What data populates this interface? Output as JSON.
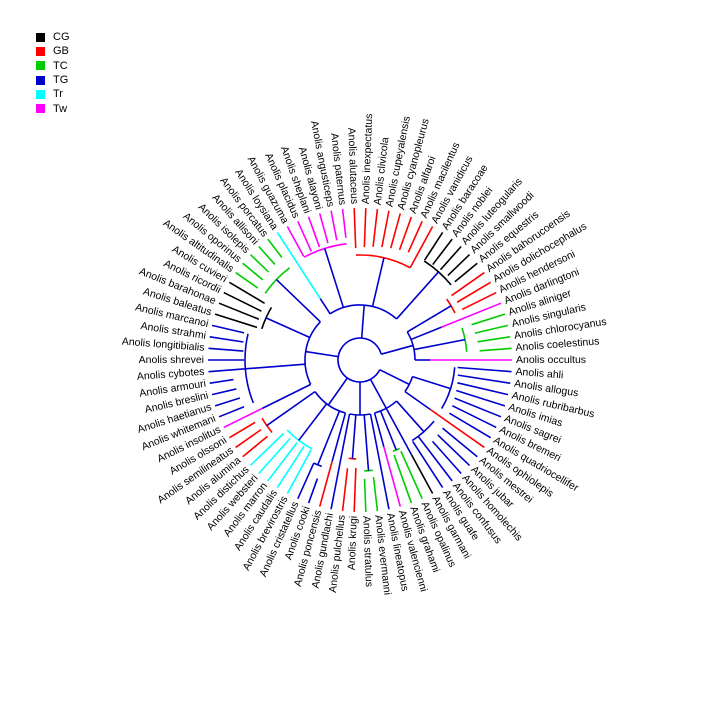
{
  "colors": {
    "CG": "#000000",
    "GB": "#ff0000",
    "TC": "#00cd00",
    "TG": "#0000cd",
    "Tr": "#00ffff",
    "Tw": "#ff00ff"
  },
  "legend": [
    {
      "label": "CG",
      "color": "#000000"
    },
    {
      "label": "GB",
      "color": "#ff0000"
    },
    {
      "label": "TC",
      "color": "#00cd00"
    },
    {
      "label": "TG",
      "color": "#0000cd"
    },
    {
      "label": "Tr",
      "color": "#00ffff"
    },
    {
      "label": "Tw",
      "color": "#ff00ff"
    }
  ],
  "tips": [
    {
      "name": "Anolis occultus",
      "ecomorph": "Tw"
    },
    {
      "name": "Anolis coelestinus",
      "ecomorph": "TC"
    },
    {
      "name": "Anolis chlorocyanus",
      "ecomorph": "TC"
    },
    {
      "name": "Anolis singularis",
      "ecomorph": "TC"
    },
    {
      "name": "Anolis aliniger",
      "ecomorph": "TC"
    },
    {
      "name": "Anolis darlingtoni",
      "ecomorph": "Tw"
    },
    {
      "name": "Anolis hendersoni",
      "ecomorph": "GB"
    },
    {
      "name": "Anolis dolichocephalus",
      "ecomorph": "GB"
    },
    {
      "name": "Anolis bahorucoensis",
      "ecomorph": "GB"
    },
    {
      "name": "Anolis equestris",
      "ecomorph": "CG"
    },
    {
      "name": "Anolis smallwoodi",
      "ecomorph": "CG"
    },
    {
      "name": "Anolis luteogularis",
      "ecomorph": "CG"
    },
    {
      "name": "Anolis noblei",
      "ecomorph": "CG"
    },
    {
      "name": "Anolis baracoae",
      "ecomorph": "CG"
    },
    {
      "name": "Anolis vanidicus",
      "ecomorph": "GB"
    },
    {
      "name": "Anolis macilentus",
      "ecomorph": "GB"
    },
    {
      "name": "Anolis alfaroi",
      "ecomorph": "GB"
    },
    {
      "name": "Anolis cyanopleurus",
      "ecomorph": "GB"
    },
    {
      "name": "Anolis cupeyalensis",
      "ecomorph": "GB"
    },
    {
      "name": "Anolis clivicola",
      "ecomorph": "GB"
    },
    {
      "name": "Anolis inexpectatus",
      "ecomorph": "GB"
    },
    {
      "name": "Anolis alutaceus",
      "ecomorph": "GB"
    },
    {
      "name": "Anolis paternus",
      "ecomorph": "Tw"
    },
    {
      "name": "Anolis angusticeps",
      "ecomorph": "Tw"
    },
    {
      "name": "Anolis alayoni",
      "ecomorph": "Tw"
    },
    {
      "name": "Anolis sheplani",
      "ecomorph": "Tw"
    },
    {
      "name": "Anolis placidus",
      "ecomorph": "Tw"
    },
    {
      "name": "Anolis guazuma",
      "ecomorph": "Tw"
    },
    {
      "name": "Anolis loysiana",
      "ecomorph": "Tr"
    },
    {
      "name": "Anolis porcatus",
      "ecomorph": "TC"
    },
    {
      "name": "Anolis allisoni",
      "ecomorph": "TC"
    },
    {
      "name": "Anolis isolepis",
      "ecomorph": "TC"
    },
    {
      "name": "Anolis oporinus",
      "ecomorph": "TC"
    },
    {
      "name": "Anolis altitudinalis",
      "ecomorph": "TC"
    },
    {
      "name": "Anolis cuvieri",
      "ecomorph": "CG"
    },
    {
      "name": "Anolis ricordii",
      "ecomorph": "CG"
    },
    {
      "name": "Anolis barahonae",
      "ecomorph": "CG"
    },
    {
      "name": "Anolis baleatus",
      "ecomorph": "CG"
    },
    {
      "name": "Anolis marcanoi",
      "ecomorph": "TG"
    },
    {
      "name": "Anolis strahmi",
      "ecomorph": "TG"
    },
    {
      "name": "Anolis longitibialis",
      "ecomorph": "TG"
    },
    {
      "name": "Anolis shrevei",
      "ecomorph": "TG"
    },
    {
      "name": "Anolis cybotes",
      "ecomorph": "TG"
    },
    {
      "name": "Anolis armouri",
      "ecomorph": "TG"
    },
    {
      "name": "Anolis breslini",
      "ecomorph": "TG"
    },
    {
      "name": "Anolis haetianus",
      "ecomorph": "TG"
    },
    {
      "name": "Anolis whitemani",
      "ecomorph": "TG"
    },
    {
      "name": "Anolis insolitus",
      "ecomorph": "Tw"
    },
    {
      "name": "Anolis olssoni",
      "ecomorph": "GB"
    },
    {
      "name": "Anolis semilineatus",
      "ecomorph": "GB"
    },
    {
      "name": "Anolis alumina",
      "ecomorph": "GB"
    },
    {
      "name": "Anolis distichus",
      "ecomorph": "Tr"
    },
    {
      "name": "Anolis websteri",
      "ecomorph": "Tr"
    },
    {
      "name": "Anolis marron",
      "ecomorph": "Tr"
    },
    {
      "name": "Anolis caudalis",
      "ecomorph": "Tr"
    },
    {
      "name": "Anolis brevirostris",
      "ecomorph": "Tr"
    },
    {
      "name": "Anolis cristatellus",
      "ecomorph": "TG"
    },
    {
      "name": "Anolis cooki",
      "ecomorph": "TG"
    },
    {
      "name": "Anolis poncensis",
      "ecomorph": "GB"
    },
    {
      "name": "Anolis gundlachi",
      "ecomorph": "TG"
    },
    {
      "name": "Anolis pulchellus",
      "ecomorph": "GB"
    },
    {
      "name": "Anolis krugi",
      "ecomorph": "GB"
    },
    {
      "name": "Anolis stratulus",
      "ecomorph": "TC"
    },
    {
      "name": "Anolis evermanni",
      "ecomorph": "TC"
    },
    {
      "name": "Anolis lineatopus",
      "ecomorph": "TG"
    },
    {
      "name": "Anolis valencienni",
      "ecomorph": "Tw"
    },
    {
      "name": "Anolis grahami",
      "ecomorph": "TC"
    },
    {
      "name": "Anolis opalinus",
      "ecomorph": "TC"
    },
    {
      "name": "Anolis garmani",
      "ecomorph": "CG"
    },
    {
      "name": "Anolis guafe",
      "ecomorph": "TG"
    },
    {
      "name": "Anolis confusus",
      "ecomorph": "TG"
    },
    {
      "name": "Anolis homolechis",
      "ecomorph": "TG"
    },
    {
      "name": "Anolis jubar",
      "ecomorph": "TG"
    },
    {
      "name": "Anolis mestrei",
      "ecomorph": "TG"
    },
    {
      "name": "Anolis ophiolepis",
      "ecomorph": "GB"
    },
    {
      "name": "Anolis quadriocellifer",
      "ecomorph": "TG"
    },
    {
      "name": "Anolis bremeri",
      "ecomorph": "TG"
    },
    {
      "name": "Anolis sagrei",
      "ecomorph": "TG"
    },
    {
      "name": "Anolis imias",
      "ecomorph": "TG"
    },
    {
      "name": "Anolis rubribarbus",
      "ecomorph": "TG"
    },
    {
      "name": "Anolis allogus",
      "ecomorph": "TG"
    },
    {
      "name": "Anolis ahli",
      "ecomorph": "TG"
    }
  ]
}
